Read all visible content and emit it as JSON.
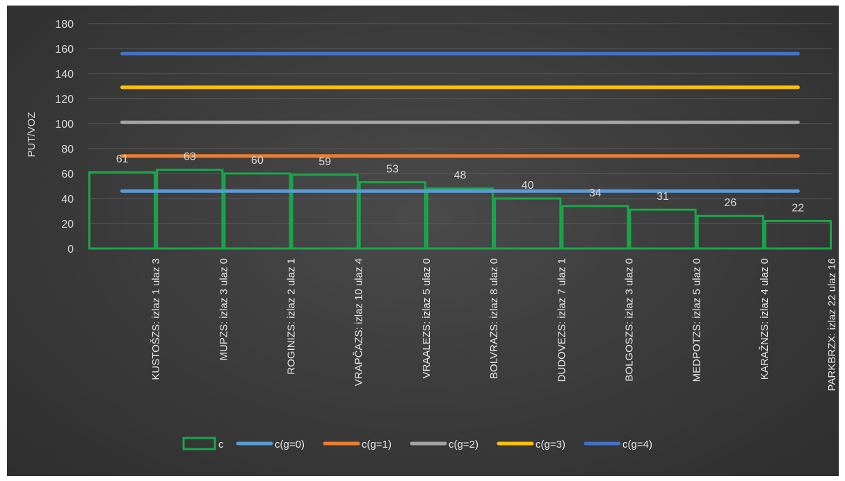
{
  "chart_data": {
    "type": "area",
    "title": "",
    "xlabel": "",
    "ylabel": "PUT/VOZ",
    "ylim": [
      0,
      180
    ],
    "yticks": [
      0,
      20,
      40,
      60,
      80,
      100,
      120,
      140,
      160,
      180
    ],
    "grid": true,
    "legend_position": "bottom",
    "categories": [
      "KUSTOŠZS: izlaz 1 ulaz 3",
      "MUPZS: izlaz 3 ulaz 0",
      "ROGINIZS: izlaz 2 ulaz 1",
      "VRAPČAZS: izlaz 10 ulaz 4",
      "VRAALEZS: izlaz 5 ulaz 0",
      "BOLVRAZS: izlaz 8 ulaz 0",
      "DUDOVEZS: izlaz 7 ulaz 1",
      "BOLGOSZS: izlaz 3 ulaz 0",
      "MEDPOTZS: izlaz 5 ulaz 0",
      "KARAŽNZS: izlaz 4 ulaz 0",
      "PARKBRZX: izlaz 22 ulaz 16"
    ],
    "series": [
      {
        "name": "c",
        "kind": "step-area",
        "color": "#1aa64a",
        "values": [
          61,
          63,
          60,
          59,
          53,
          48,
          40,
          34,
          31,
          26,
          22
        ],
        "data_labels": [
          "61",
          "63",
          "60",
          "59",
          "53",
          "48",
          "40",
          "34",
          "31",
          "26",
          "22"
        ]
      },
      {
        "name": "c(g=0)",
        "kind": "line",
        "color": "#5b9bd5",
        "value": 46
      },
      {
        "name": "c(g=1)",
        "kind": "line",
        "color": "#ed7d31",
        "value": 74
      },
      {
        "name": "c(g=2)",
        "kind": "line",
        "color": "#a5a5a5",
        "value": 101
      },
      {
        "name": "c(g=3)",
        "kind": "line",
        "color": "#ffc000",
        "value": 129
      },
      {
        "name": "c(g=4)",
        "kind": "line",
        "color": "#4472c4",
        "value": 156
      }
    ]
  }
}
